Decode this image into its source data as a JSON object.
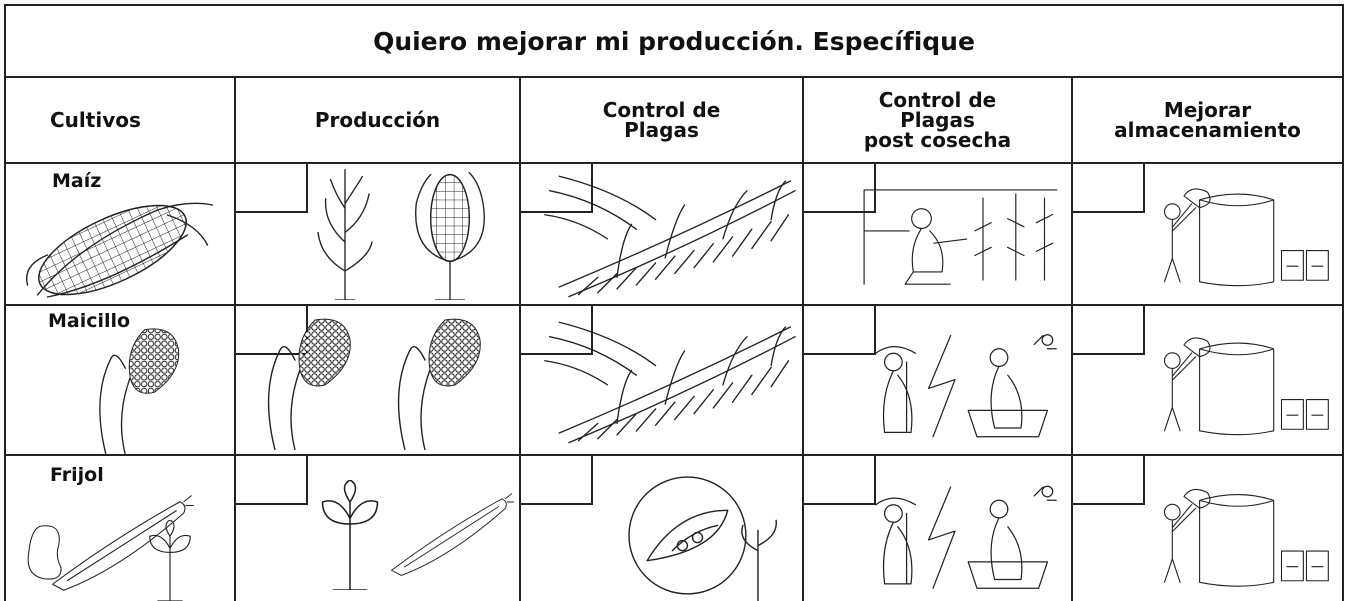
{
  "title": "Quiero mejorar mi producción. Específique",
  "table": {
    "headers": [
      "Cultivos",
      "Producción",
      "Control de\nPlagas",
      "Control de\nPlagas\npost cosecha",
      "Mejorar\nalmacenamiento"
    ],
    "rows": [
      {
        "crop": "Maíz"
      },
      {
        "crop": "Maicillo"
      },
      {
        "crop": "Frijol"
      }
    ]
  }
}
